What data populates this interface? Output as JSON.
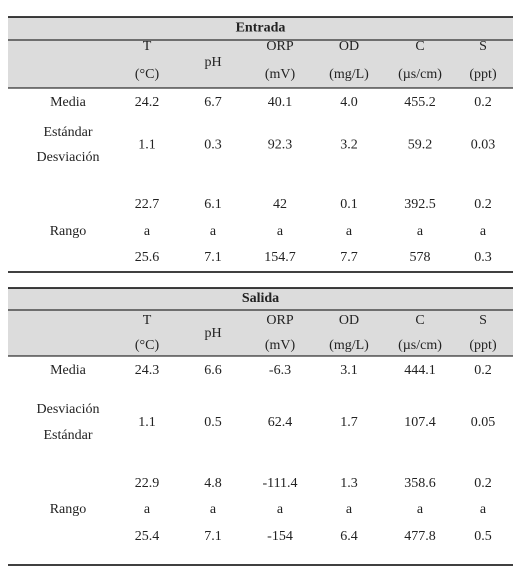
{
  "tables": [
    {
      "title": "Entrada",
      "headers": [
        {
          "name": "T",
          "unit": "(°C)"
        },
        {
          "name": "pH"
        },
        {
          "name": "ORP",
          "unit": "(mV)"
        },
        {
          "name": "OD",
          "unit": "(mg/L)"
        },
        {
          "name": "C",
          "unit": "(µs/cm)"
        },
        {
          "name": "S",
          "unit": "(ppt)"
        }
      ],
      "rows": [
        {
          "label": [
            "Media"
          ],
          "values": [
            [
              "24.2"
            ],
            [
              "6.7"
            ],
            [
              "40.1"
            ],
            [
              "4.0"
            ],
            [
              "455.2"
            ],
            [
              "0.2"
            ]
          ]
        },
        {
          "label": [
            "Estándar",
            "Desviación"
          ],
          "values": [
            [
              "1.1"
            ],
            [
              "0.3"
            ],
            [
              "92.3"
            ],
            [
              "3.2"
            ],
            [
              "59.2"
            ],
            [
              "0.03"
            ]
          ]
        },
        {
          "label": [
            "Rango"
          ],
          "values": [
            [
              "22.7",
              "a",
              "25.6"
            ],
            [
              "6.1",
              "a",
              "7.1"
            ],
            [
              "42",
              "a",
              "154.7"
            ],
            [
              "0.1",
              "a",
              "7.7"
            ],
            [
              "392.5",
              "a",
              "578"
            ],
            [
              "0.2",
              "a",
              "0.3"
            ]
          ]
        }
      ]
    },
    {
      "title": "Salida",
      "headers": [
        {
          "name": "T",
          "unit": "(°C)"
        },
        {
          "name": "pH"
        },
        {
          "name": "ORP",
          "unit": "(mV)"
        },
        {
          "name": "OD",
          "unit": "(mg/L)"
        },
        {
          "name": "C",
          "unit": "(µs/cm)"
        },
        {
          "name": "S",
          "unit": "(ppt)"
        }
      ],
      "rows": [
        {
          "label": [
            "Media"
          ],
          "values": [
            [
              "24.3"
            ],
            [
              "6.6"
            ],
            [
              "-6.3"
            ],
            [
              "3.1"
            ],
            [
              "444.1"
            ],
            [
              "0.2"
            ]
          ]
        },
        {
          "label": [
            "Desviación",
            "Estándar"
          ],
          "values": [
            [
              "1.1"
            ],
            [
              "0.5"
            ],
            [
              "62.4"
            ],
            [
              "1.7"
            ],
            [
              "107.4"
            ],
            [
              "0.05"
            ]
          ]
        },
        {
          "label": [
            "Rango"
          ],
          "values": [
            [
              "22.9",
              "a",
              "25.4"
            ],
            [
              "4.8",
              "a",
              "7.1"
            ],
            [
              "-111.4",
              "a",
              "-154"
            ],
            [
              "1.3",
              "a",
              "6.4"
            ],
            [
              "358.6",
              "a",
              "477.8"
            ],
            [
              "0.2",
              "a",
              "0.5"
            ]
          ]
        }
      ]
    }
  ]
}
